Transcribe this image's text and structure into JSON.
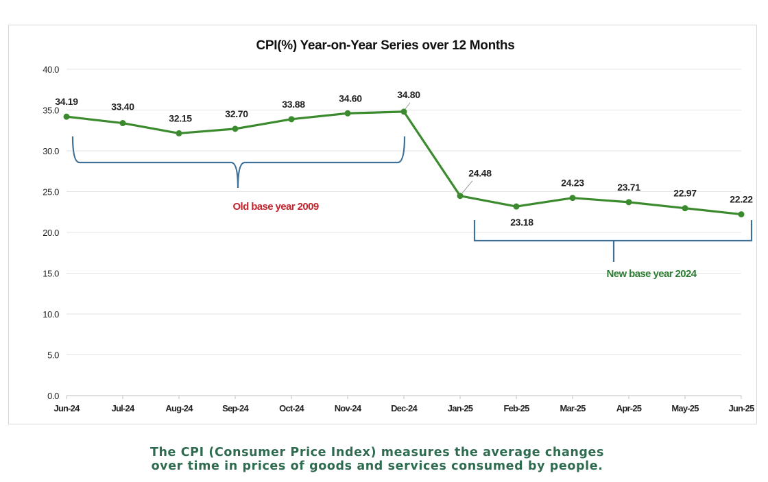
{
  "chart_data": {
    "type": "line",
    "title": "CPI(%) Year-on-Year Series over 12 Months",
    "xlabel": "",
    "ylabel": "",
    "ylim": [
      0,
      40
    ],
    "y_ticks": [
      "0.0",
      "5.0",
      "10.0",
      "15.0",
      "20.0",
      "25.0",
      "30.0",
      "35.0",
      "40.0"
    ],
    "categories": [
      "Jun-24",
      "Jul-24",
      "Aug-24",
      "Sep-24",
      "Oct-24",
      "Nov-24",
      "Dec-24",
      "Jan-25",
      "Feb-25",
      "Mar-25",
      "Apr-25",
      "May-25",
      "Jun-25"
    ],
    "series": [
      {
        "points": [
          {
            "x": "Jun-24",
            "y": 34.19,
            "label": "34.19"
          },
          {
            "x": "Jul-24",
            "y": 33.4,
            "label": "33.40"
          },
          {
            "x": "Aug-24",
            "y": 32.15,
            "label": "32.15"
          },
          {
            "x": "Sep-24",
            "y": 32.7,
            "label": "32.70"
          },
          {
            "x": "Oct-24",
            "y": 33.88,
            "label": "33.88"
          },
          {
            "x": "Nov-24",
            "y": 34.6,
            "label": "34.60"
          },
          {
            "x": "Dec-24",
            "y": 34.8,
            "label": "34.80"
          },
          {
            "x": "Jan-25",
            "y": 24.48,
            "label": "24.48"
          },
          {
            "x": "Feb-25",
            "y": 23.18,
            "label": "23.18"
          },
          {
            "x": "Mar-25",
            "y": 24.23,
            "label": "24.23"
          },
          {
            "x": "Apr-25",
            "y": 23.71,
            "label": "23.71"
          },
          {
            "x": "May-25",
            "y": 22.97,
            "label": "22.97"
          },
          {
            "x": "Jun-25",
            "y": 22.22,
            "label": "22.22"
          }
        ]
      }
    ],
    "grid": true,
    "colors": {
      "line": "#3b8a2e",
      "bracket": "#3e6f96",
      "old_base": "#c0262d",
      "new_base": "#2e7d32",
      "grid": "#e3e3e3"
    },
    "annotations": {
      "old_base": "Old base year 2009",
      "new_base": "New base year 2024"
    }
  },
  "caption": {
    "line1": "The CPI (Consumer Price Index) measures the average changes",
    "line2": "over time in prices of goods and services consumed by people."
  }
}
